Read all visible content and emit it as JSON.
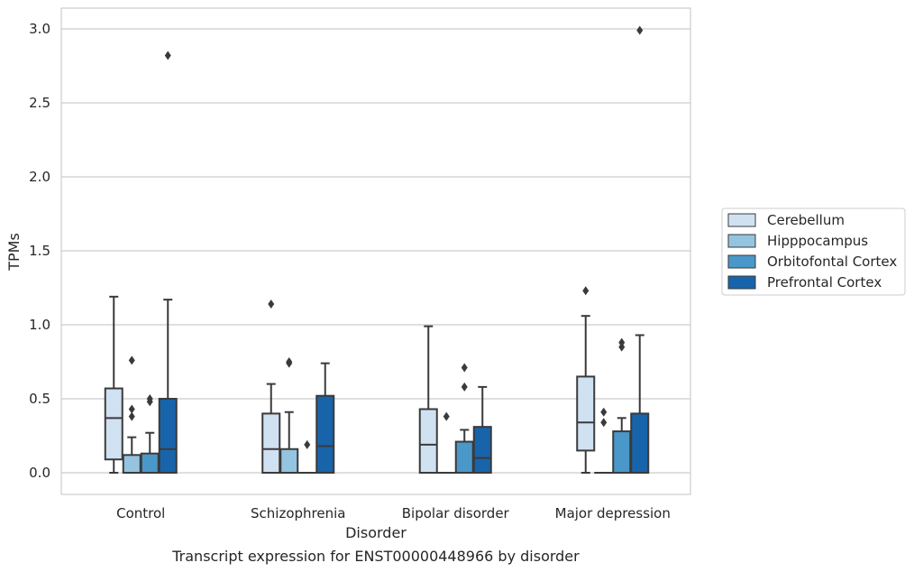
{
  "chart_data": {
    "type": "box",
    "caption": "Transcript expression for ENST00000448966 by disorder",
    "xlabel": "Disorder",
    "ylabel": "TPMs",
    "ylim": [
      -0.15,
      3.15
    ],
    "yticks": [
      0.0,
      0.5,
      1.0,
      1.5,
      2.0,
      2.5,
      3.0
    ],
    "ytick_labels": [
      "0.0",
      "0.5",
      "1.0",
      "1.5",
      "2.0",
      "2.5",
      "3.0"
    ],
    "grid": "horizontal",
    "legend_position": "right",
    "categories": [
      "Control",
      "Schizophrenia",
      "Bipolar disorder",
      "Major depression"
    ],
    "series": [
      {
        "name": "Cerebellum",
        "color": "#d0e1f2",
        "boxes": [
          {
            "q1": 0.09,
            "median": 0.37,
            "q3": 0.57,
            "whisker_low": 0.0,
            "whisker_high": 1.19,
            "outliers": []
          },
          {
            "q1": 0.0,
            "median": 0.16,
            "q3": 0.4,
            "whisker_low": 0.0,
            "whisker_high": 0.6,
            "outliers": [
              1.14
            ]
          },
          {
            "q1": 0.0,
            "median": 0.19,
            "q3": 0.43,
            "whisker_low": 0.0,
            "whisker_high": 0.99,
            "outliers": []
          },
          {
            "q1": 0.15,
            "median": 0.34,
            "q3": 0.65,
            "whisker_low": 0.0,
            "whisker_high": 1.06,
            "outliers": [
              1.23
            ]
          }
        ]
      },
      {
        "name": "Hipppocampus",
        "color": "#94c4df",
        "boxes": [
          {
            "q1": 0.0,
            "median": 0.0,
            "q3": 0.12,
            "whisker_low": 0.0,
            "whisker_high": 0.24,
            "outliers": [
              0.38,
              0.43,
              0.76
            ]
          },
          {
            "q1": 0.0,
            "median": 0.0,
            "q3": 0.16,
            "whisker_low": 0.0,
            "whisker_high": 0.41,
            "outliers": [
              0.74,
              0.75
            ]
          },
          {
            "q1": 0.0,
            "median": 0.0,
            "q3": 0.0,
            "whisker_low": 0.0,
            "whisker_high": 0.0,
            "outliers": [
              0.38
            ]
          },
          {
            "q1": 0.0,
            "median": 0.0,
            "q3": 0.0,
            "whisker_low": 0.0,
            "whisker_high": 0.0,
            "outliers": [
              0.34,
              0.41
            ]
          }
        ]
      },
      {
        "name": "Orbitofontal Cortex",
        "color": "#4a98c9",
        "boxes": [
          {
            "q1": 0.0,
            "median": 0.0,
            "q3": 0.13,
            "whisker_low": 0.0,
            "whisker_high": 0.27,
            "outliers": [
              0.48,
              0.5
            ]
          },
          {
            "q1": 0.0,
            "median": 0.0,
            "q3": 0.0,
            "whisker_low": 0.0,
            "whisker_high": 0.0,
            "outliers": [
              0.19
            ]
          },
          {
            "q1": 0.0,
            "median": 0.0,
            "q3": 0.21,
            "whisker_low": 0.0,
            "whisker_high": 0.29,
            "outliers": [
              0.58,
              0.71
            ]
          },
          {
            "q1": 0.0,
            "median": 0.0,
            "q3": 0.28,
            "whisker_low": 0.0,
            "whisker_high": 0.37,
            "outliers": [
              0.85,
              0.88
            ]
          }
        ]
      },
      {
        "name": "Prefrontal Cortex",
        "color": "#1764ab",
        "boxes": [
          {
            "q1": 0.0,
            "median": 0.16,
            "q3": 0.5,
            "whisker_low": 0.0,
            "whisker_high": 1.17,
            "outliers": [
              2.82
            ]
          },
          {
            "q1": 0.0,
            "median": 0.18,
            "q3": 0.52,
            "whisker_low": 0.0,
            "whisker_high": 0.74,
            "outliers": []
          },
          {
            "q1": 0.0,
            "median": 0.1,
            "q3": 0.31,
            "whisker_low": 0.0,
            "whisker_high": 0.58,
            "outliers": []
          },
          {
            "q1": 0.0,
            "median": 0.0,
            "q3": 0.4,
            "whisker_low": 0.0,
            "whisker_high": 0.93,
            "outliers": [
              2.99
            ]
          }
        ]
      }
    ]
  }
}
